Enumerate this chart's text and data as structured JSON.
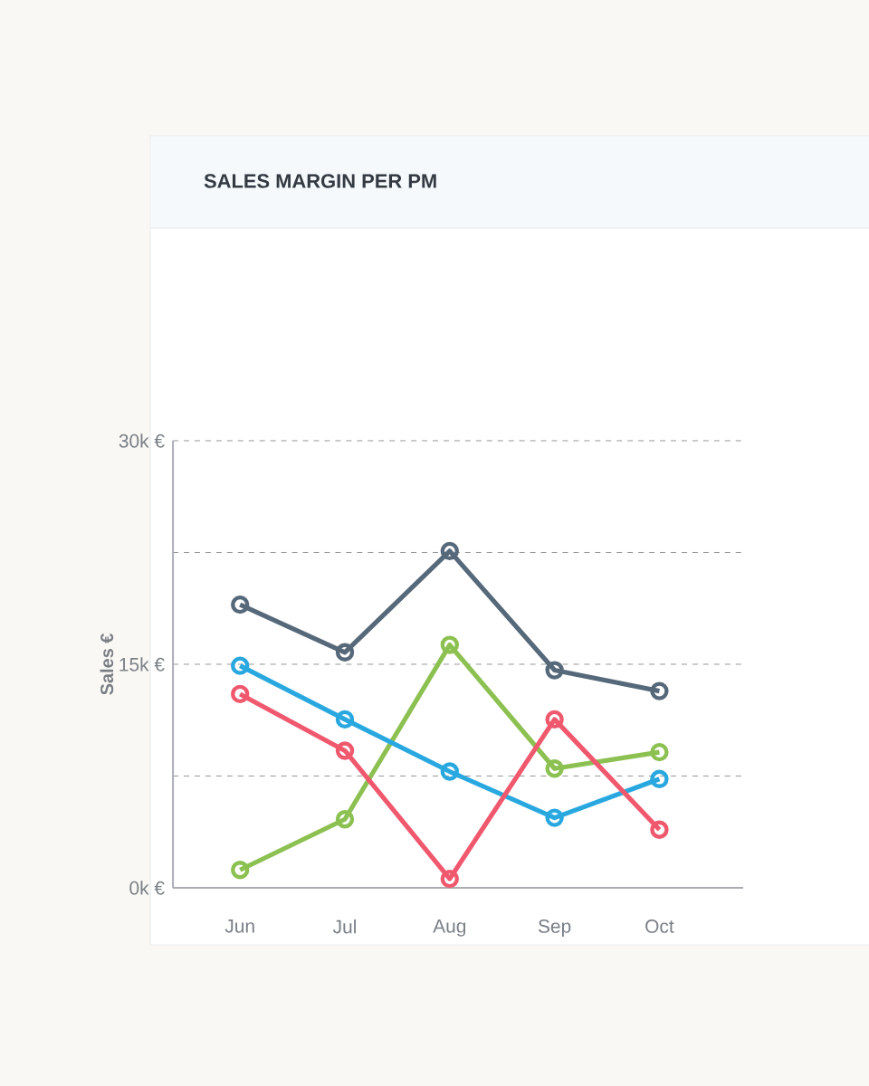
{
  "chart_data": {
    "type": "line",
    "title": "SALES MARGIN PER PM",
    "ylabel": "Sales €",
    "categories": [
      "Jun",
      "Jul",
      "Aug",
      "Sep",
      "Oct"
    ],
    "series": [
      {
        "color": "#56697a",
        "values": [
          19,
          15.8,
          22.6,
          14.6,
          13.2
        ]
      },
      {
        "color": "#8cc152",
        "values": [
          1.2,
          4.6,
          16.3,
          8.0,
          9.1
        ]
      },
      {
        "color": "#29a8e0",
        "values": [
          14.9,
          11.3,
          7.8,
          4.7,
          7.3
        ]
      },
      {
        "color": "#f0586e",
        "values": [
          13.0,
          9.2,
          0.6,
          11.3,
          3.9
        ]
      }
    ],
    "ylim": [
      0,
      30
    ],
    "yticks": [
      {
        "value": 0,
        "label": "0k €"
      },
      {
        "value": 7.5,
        "label": null
      },
      {
        "value": 15,
        "label": "15k €"
      },
      {
        "value": 22.5,
        "label": null
      },
      {
        "value": 30,
        "label": "30k €"
      }
    ],
    "grid": "y",
    "marker": "circle",
    "line_style": "solid",
    "legend": false
  }
}
